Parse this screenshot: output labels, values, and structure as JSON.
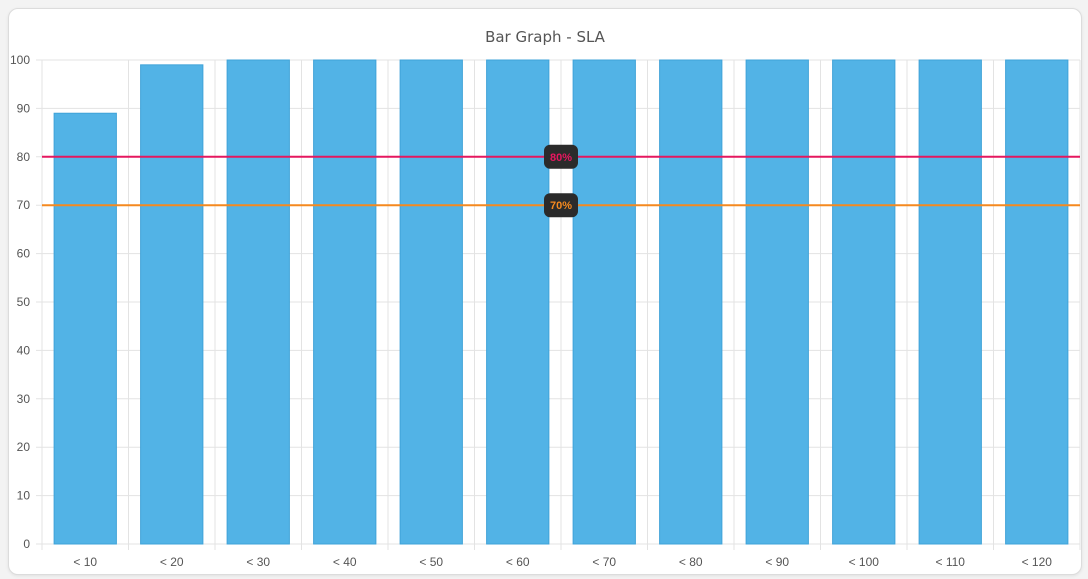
{
  "chart_data": {
    "type": "bar",
    "title": "Bar Graph - SLA",
    "categories": [
      "< 10",
      "< 20",
      "< 30",
      "< 40",
      "< 50",
      "< 60",
      "< 70",
      "< 80",
      "< 90",
      "< 100",
      "< 110",
      "< 120"
    ],
    "values": [
      89,
      99,
      100,
      100,
      100,
      100,
      100,
      100,
      100,
      100,
      100,
      100
    ],
    "ylim": [
      0,
      100
    ],
    "yticks": [
      "0",
      "10",
      "20",
      "30",
      "40",
      "50",
      "60",
      "70",
      "80",
      "90",
      "100"
    ],
    "grid": true,
    "bar_color": "#52b3e6",
    "thresholds": [
      {
        "value": 80,
        "label": "80%",
        "color": "#e6175f"
      },
      {
        "value": 70,
        "label": "70%",
        "color": "#f5891f"
      }
    ]
  }
}
